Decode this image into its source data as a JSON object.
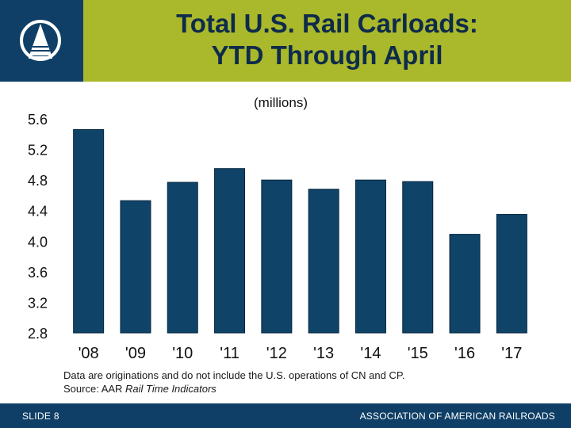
{
  "header": {
    "title_line1": "Total U.S. Rail Carloads:",
    "title_line2": "YTD Through April"
  },
  "colors": {
    "header_bg": "#aab82b",
    "navy": "#0f3f66",
    "bar": "#0f4468"
  },
  "chart_data": {
    "type": "bar",
    "title": "Total U.S. Rail Carloads: YTD Through April",
    "subtitle": "(millions)",
    "categories": [
      "'08",
      "'09",
      "'10",
      "'11",
      "'12",
      "'13",
      "'14",
      "'15",
      "'16",
      "'17"
    ],
    "values": [
      5.46,
      4.53,
      4.77,
      4.95,
      4.8,
      4.68,
      4.8,
      4.78,
      4.09,
      4.35
    ],
    "ylim": [
      2.8,
      5.6
    ],
    "yticks": [
      "5.6",
      "5.2",
      "4.8",
      "4.4",
      "4.0",
      "3.6",
      "3.2",
      "2.8"
    ],
    "ytick_values": [
      5.6,
      5.2,
      4.8,
      4.4,
      4.0,
      3.6,
      3.2,
      2.8
    ],
    "xlabel": "",
    "ylabel": "",
    "grid": false
  },
  "note": {
    "line1": "Data are originations and do not include the U.S. operations of CN and CP.",
    "source_prefix": "Source: AAR ",
    "source_italic": "Rail Time Indicators"
  },
  "footer": {
    "slide_label": "SLIDE 8",
    "org_name": "ASSOCIATION OF AMERICAN RAILROADS"
  },
  "icons": {
    "logo": "aar-logo-icon"
  }
}
